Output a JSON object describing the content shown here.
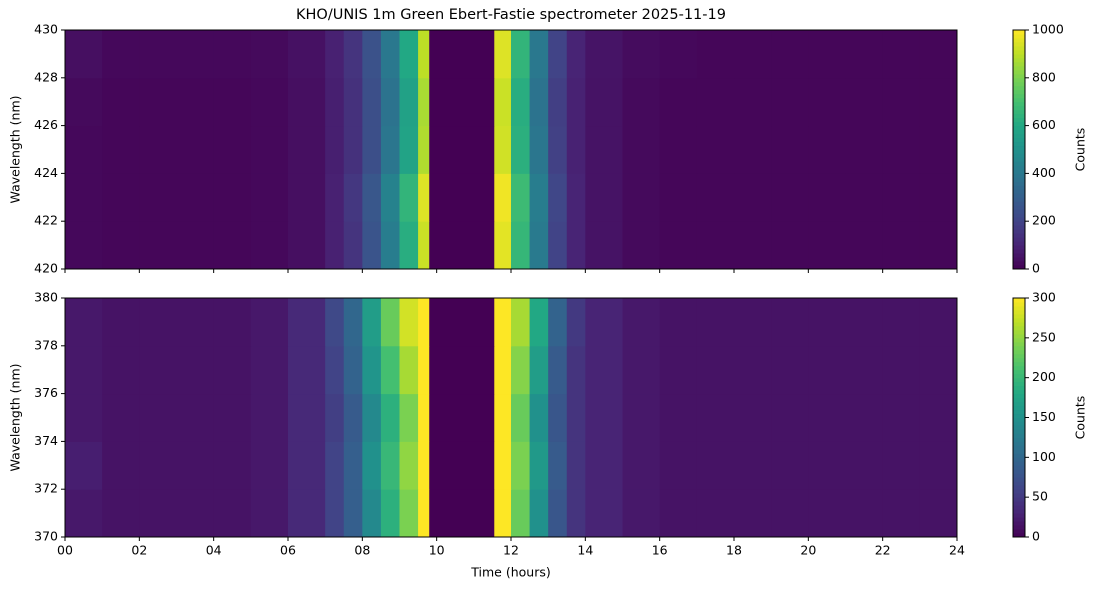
{
  "chart_data": [
    {
      "type": "heatmap",
      "title": "KHO/UNIS 1m Green Ebert-Fastie spectrometer 2025-11-19",
      "ylabel": "Wavelength (nm)",
      "colorbar_label": "Counts",
      "colormap": "viridis",
      "xbins": [
        0,
        1,
        2,
        3,
        4,
        5,
        6,
        7,
        7.5,
        8,
        8.5,
        9,
        9.5,
        9.8,
        11.55,
        12,
        12.5,
        13,
        13.5,
        14,
        15,
        16,
        17,
        18,
        19,
        20,
        21,
        22,
        23,
        24
      ],
      "ybins": [
        420,
        422,
        424,
        426,
        428,
        430
      ],
      "z": [
        [
          20,
          15,
          15,
          15,
          15,
          20,
          40,
          90,
          150,
          260,
          420,
          620,
          920,
          0,
          960,
          660,
          410,
          200,
          100,
          50,
          25,
          15,
          15,
          15,
          15,
          15,
          15,
          15,
          15
        ],
        [
          20,
          15,
          15,
          15,
          15,
          20,
          40,
          90,
          160,
          270,
          440,
          650,
          950,
          0,
          980,
          680,
          420,
          210,
          100,
          50,
          25,
          15,
          15,
          15,
          15,
          15,
          15,
          15,
          15
        ],
        [
          20,
          15,
          15,
          15,
          15,
          20,
          40,
          85,
          140,
          240,
          390,
          580,
          880,
          0,
          930,
          630,
          390,
          190,
          95,
          50,
          25,
          15,
          15,
          15,
          15,
          15,
          15,
          15,
          15
        ],
        [
          25,
          15,
          15,
          15,
          15,
          20,
          40,
          85,
          140,
          240,
          380,
          570,
          870,
          0,
          920,
          620,
          380,
          185,
          95,
          50,
          25,
          15,
          15,
          15,
          15,
          15,
          15,
          15,
          15
        ],
        [
          40,
          20,
          20,
          20,
          20,
          25,
          45,
          90,
          150,
          250,
          400,
          600,
          900,
          0,
          950,
          650,
          400,
          200,
          100,
          55,
          30,
          20,
          15,
          15,
          15,
          15,
          15,
          15,
          15
        ]
      ],
      "xlim": [
        0,
        24
      ],
      "xticks": [
        0,
        2,
        4,
        6,
        8,
        10,
        12,
        14,
        16,
        18,
        20,
        22,
        24
      ],
      "show_xticklabels": false,
      "ylim": [
        420,
        430
      ],
      "yticks": [
        420,
        422,
        424,
        426,
        428,
        430
      ],
      "clim": [
        0,
        1000
      ],
      "cticks": [
        0,
        200,
        400,
        600,
        800,
        1000
      ]
    },
    {
      "type": "heatmap",
      "ylabel": "Wavelength (nm)",
      "xlabel": "Time (hours)",
      "colorbar_label": "Counts",
      "colormap": "viridis",
      "xbins": [
        0,
        1,
        2,
        3,
        4,
        5,
        6,
        7,
        7.5,
        8,
        8.5,
        9,
        9.5,
        9.8,
        11.55,
        12,
        12.5,
        13,
        13.5,
        14,
        15,
        16,
        17,
        18,
        19,
        20,
        21,
        22,
        23,
        24
      ],
      "ybins": [
        370,
        372,
        374,
        376,
        378,
        380
      ],
      "z": [
        [
          20,
          15,
          15,
          15,
          15,
          20,
          35,
          60,
          90,
          140,
          190,
          240,
          300,
          0,
          300,
          230,
          150,
          80,
          45,
          30,
          20,
          15,
          15,
          15,
          15,
          15,
          15,
          15,
          15
        ],
        [
          25,
          15,
          15,
          15,
          15,
          20,
          35,
          60,
          90,
          150,
          200,
          250,
          300,
          0,
          300,
          240,
          160,
          85,
          45,
          30,
          20,
          15,
          15,
          15,
          15,
          15,
          15,
          15,
          15
        ],
        [
          20,
          15,
          15,
          15,
          15,
          20,
          35,
          55,
          85,
          140,
          190,
          240,
          300,
          0,
          300,
          230,
          150,
          80,
          45,
          30,
          20,
          15,
          15,
          15,
          15,
          15,
          15,
          15,
          15
        ],
        [
          20,
          15,
          15,
          15,
          15,
          20,
          35,
          60,
          95,
          155,
          210,
          260,
          300,
          0,
          300,
          245,
          165,
          85,
          45,
          30,
          20,
          15,
          15,
          15,
          15,
          15,
          15,
          15,
          15
        ],
        [
          20,
          15,
          15,
          15,
          15,
          20,
          35,
          65,
          100,
          165,
          230,
          280,
          300,
          0,
          300,
          260,
          180,
          95,
          50,
          30,
          20,
          15,
          15,
          15,
          15,
          15,
          15,
          15,
          15
        ]
      ],
      "xlim": [
        0,
        24
      ],
      "xticks": [
        {
          "value": 0,
          "label": "00"
        },
        {
          "value": 2,
          "label": "02"
        },
        {
          "value": 4,
          "label": "04"
        },
        {
          "value": 6,
          "label": "06"
        },
        {
          "value": 8,
          "label": "08"
        },
        {
          "value": 10,
          "label": "10"
        },
        {
          "value": 12,
          "label": "12"
        },
        {
          "value": 14,
          "label": "14"
        },
        {
          "value": 16,
          "label": "16"
        },
        {
          "value": 18,
          "label": "18"
        },
        {
          "value": 20,
          "label": "20"
        },
        {
          "value": 22,
          "label": "22"
        },
        {
          "value": 24,
          "label": "24"
        }
      ],
      "show_xticklabels": true,
      "ylim": [
        370,
        380
      ],
      "yticks": [
        370,
        372,
        374,
        376,
        378,
        380
      ],
      "clim": [
        0,
        300
      ],
      "cticks": [
        0,
        50,
        100,
        150,
        200,
        250,
        300
      ]
    }
  ]
}
